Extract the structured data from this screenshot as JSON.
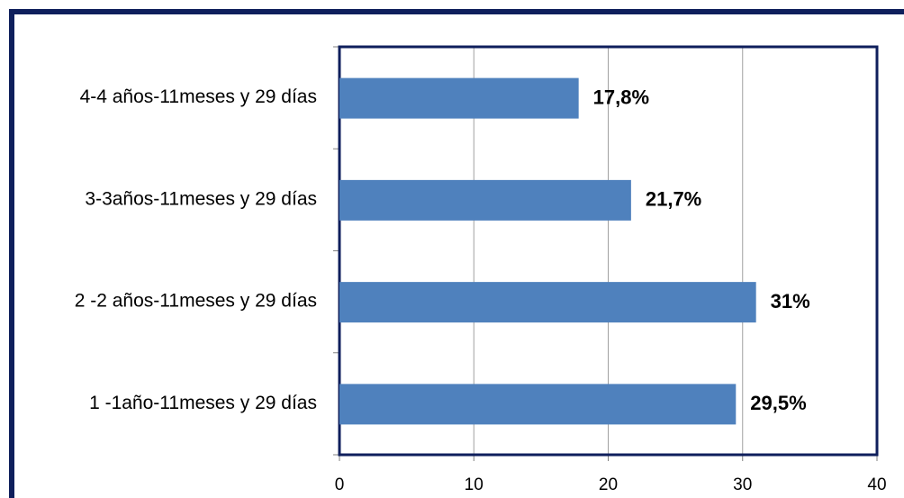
{
  "chart_data": {
    "type": "barh",
    "categories": [
      "4-4 años-11meses y 29 días",
      "3-3años-11meses y 29 días",
      "2 -2 años-11meses y 29 días",
      "1 -1año-11meses y 29 días"
    ],
    "values": [
      17.8,
      21.7,
      31,
      29.5
    ],
    "value_labels": [
      "17,8%",
      "21,7%",
      "31%",
      "29,5%"
    ],
    "color": "#4f81bd",
    "xlim": [
      0,
      40
    ],
    "xticks": [
      0,
      10,
      20,
      30,
      40
    ],
    "grid": true
  }
}
